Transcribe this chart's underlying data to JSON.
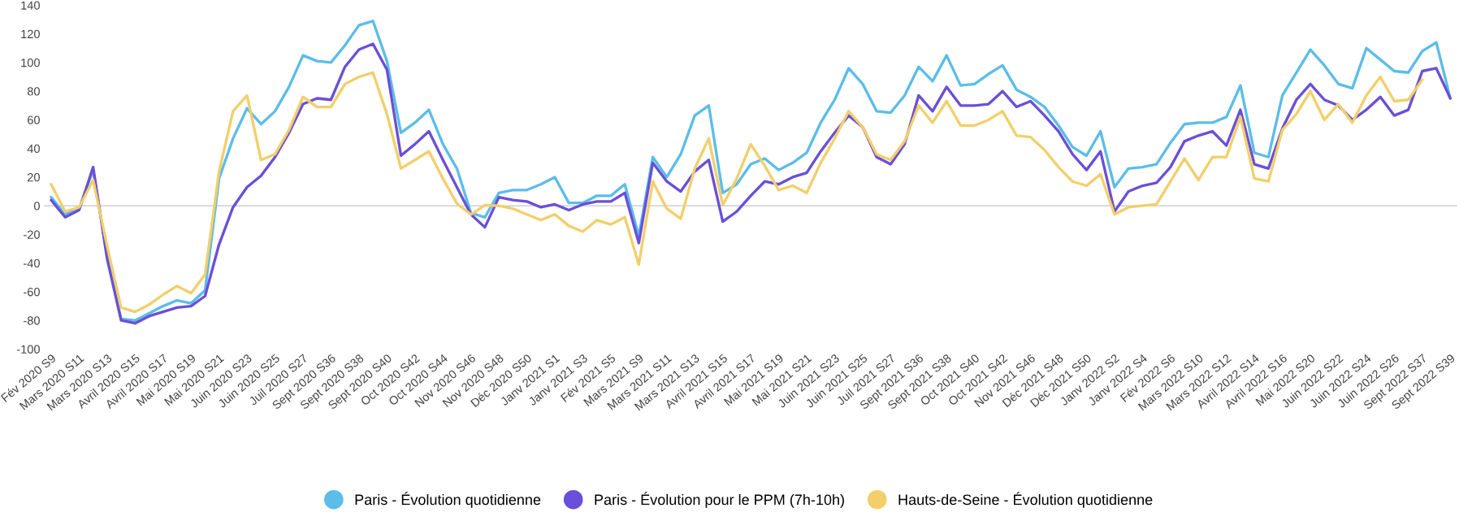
{
  "chart_data": {
    "type": "line",
    "categories": [
      "Fév 2020 S9",
      null,
      "Mars 2020 S11",
      null,
      "Mars 2020 S13",
      null,
      "Avril 2020 S15",
      null,
      "Avril 2020 S17",
      null,
      "Mai 2020 S19",
      null,
      "Mai 2020 S21",
      null,
      "Juin 2020 S23",
      null,
      "Juin 2020 S25",
      null,
      "Juil 2020 S27",
      null,
      "Sept 2020 S36",
      null,
      "Sept 2020 S38",
      null,
      "Sept 2020 S40",
      null,
      "Oct 2020 S42",
      null,
      "Oct 2020 S44",
      null,
      "Nov 2020 S46",
      null,
      "Nov 2020 S48",
      null,
      "Déc 2020 S50",
      null,
      "Janv 2021 S1",
      null,
      "Janv 2021 S3",
      null,
      "Fév 2021 S5",
      null,
      "Mars 2021 S9",
      null,
      "Mars 2021 S11",
      null,
      "Mars 2021 S13",
      null,
      "Avril 2021 S15",
      null,
      "Avril 2021 S17",
      null,
      "Mai 2021 S19",
      null,
      "Mai 2021 S21",
      null,
      "Juin 2021 S23",
      null,
      "Juin 2021 S25",
      null,
      "Juil 2021 S27",
      null,
      "Sept 2021 S36",
      null,
      "Sept 2021 S38",
      null,
      "Oct 2021 S40",
      null,
      "Oct 2021 S42",
      null,
      "Nov 2021 S46",
      null,
      "Déc 2021 S48",
      null,
      "Déc 2021 S50",
      null,
      "Janv 2022 S2",
      null,
      "Janv 2022 S4",
      null,
      "Fév 2022 S6",
      null,
      "Mars 2022 S10",
      null,
      "Mars 2022 S12",
      null,
      "Avril 2022 S14",
      null,
      "Avril 2022 S16",
      null,
      "Mai 2022 S20",
      null,
      "Juin 2022 S22",
      null,
      "Juin 2022 S24",
      null,
      "Juin 2022 S26",
      null,
      "Sept 2022 S37",
      null,
      "Sept 2022 S39"
    ],
    "series": [
      {
        "name": "Paris - Évolution quotidienne",
        "color": "#5bbde8",
        "values": [
          6,
          -6,
          -2,
          25,
          -35,
          -79,
          -80,
          -75,
          -70,
          -66,
          -68,
          -59,
          19,
          47,
          68,
          57,
          66,
          83,
          105,
          101,
          100,
          112,
          126,
          129,
          101,
          51,
          58,
          67,
          43,
          26,
          -5,
          -8,
          9,
          11,
          11,
          15,
          20,
          2,
          2,
          7,
          7,
          15,
          -21,
          34,
          20,
          36,
          63,
          70,
          9,
          15,
          29,
          33,
          25,
          30,
          37,
          58,
          74,
          96,
          85,
          66,
          65,
          77,
          97,
          87,
          105,
          84,
          85,
          92,
          98,
          81,
          76,
          69,
          56,
          41,
          35,
          52,
          13,
          26,
          27,
          29,
          44,
          57,
          58,
          58,
          62,
          84,
          37,
          34,
          77,
          93,
          109,
          98,
          85,
          82,
          110,
          102,
          94,
          93,
          108,
          114,
          75
        ]
      },
      {
        "name": "Paris - Évolution pour le PPM (7h-10h)",
        "color": "#6a4fd8",
        "values": [
          4,
          -8,
          -3,
          27,
          -37,
          -80,
          -82,
          -77,
          -74,
          -71,
          -70,
          -63,
          -27,
          -1,
          13,
          21,
          34,
          51,
          71,
          75,
          74,
          97,
          109,
          113,
          95,
          35,
          43,
          52,
          32,
          13,
          -6,
          -15,
          6,
          4,
          3,
          -1,
          1,
          -3,
          1,
          3,
          3,
          9,
          -26,
          30,
          17,
          10,
          24,
          32,
          -11,
          -4,
          7,
          17,
          15,
          20,
          23,
          38,
          51,
          63,
          55,
          34,
          29,
          43,
          77,
          66,
          83,
          70,
          70,
          71,
          80,
          69,
          73,
          63,
          52,
          36,
          25,
          38,
          -4,
          10,
          14,
          16,
          27,
          45,
          49,
          52,
          42,
          67,
          29,
          26,
          54,
          74,
          85,
          74,
          70,
          60,
          67,
          76,
          63,
          67,
          94,
          96,
          75
        ]
      },
      {
        "name": "Hauts-de-Seine - Évolution quotidienne",
        "color": "#f2cf6b",
        "values": [
          15,
          -4,
          -1,
          18,
          -28,
          -71,
          -74,
          -69,
          -62,
          -56,
          -61,
          -48,
          24,
          66,
          77,
          32,
          36,
          53,
          76,
          69,
          69,
          85,
          90,
          93,
          64,
          26,
          32,
          38,
          19,
          1.5,
          -6,
          0.4,
          0,
          -2,
          -6,
          -10,
          -6,
          -14,
          -18,
          -10,
          -13,
          -8,
          -41,
          17,
          -2,
          -9,
          26,
          47,
          0.4,
          19,
          43,
          28,
          11,
          14,
          9,
          30,
          47,
          66,
          55,
          36,
          32,
          45,
          70,
          58,
          73,
          56,
          56,
          60,
          66,
          49,
          48,
          39,
          27,
          17,
          14,
          22,
          -6,
          -1,
          0,
          1,
          17,
          33,
          18,
          34,
          34,
          62,
          19,
          17,
          53,
          64,
          80,
          60,
          71,
          58,
          77,
          90,
          73,
          74,
          88,
          null,
          null
        ]
      }
    ],
    "ylim": [
      -100,
      140
    ],
    "yticks": [
      -100,
      -80,
      -60,
      -40,
      -20,
      0,
      20,
      40,
      60,
      80,
      100,
      120,
      140
    ],
    "ref_lines": [
      {
        "axis": "y",
        "value": 0,
        "color": "#d0d0d0"
      }
    ],
    "grid": false,
    "legend": "bottom",
    "marker": "none",
    "line_style": "solid"
  }
}
